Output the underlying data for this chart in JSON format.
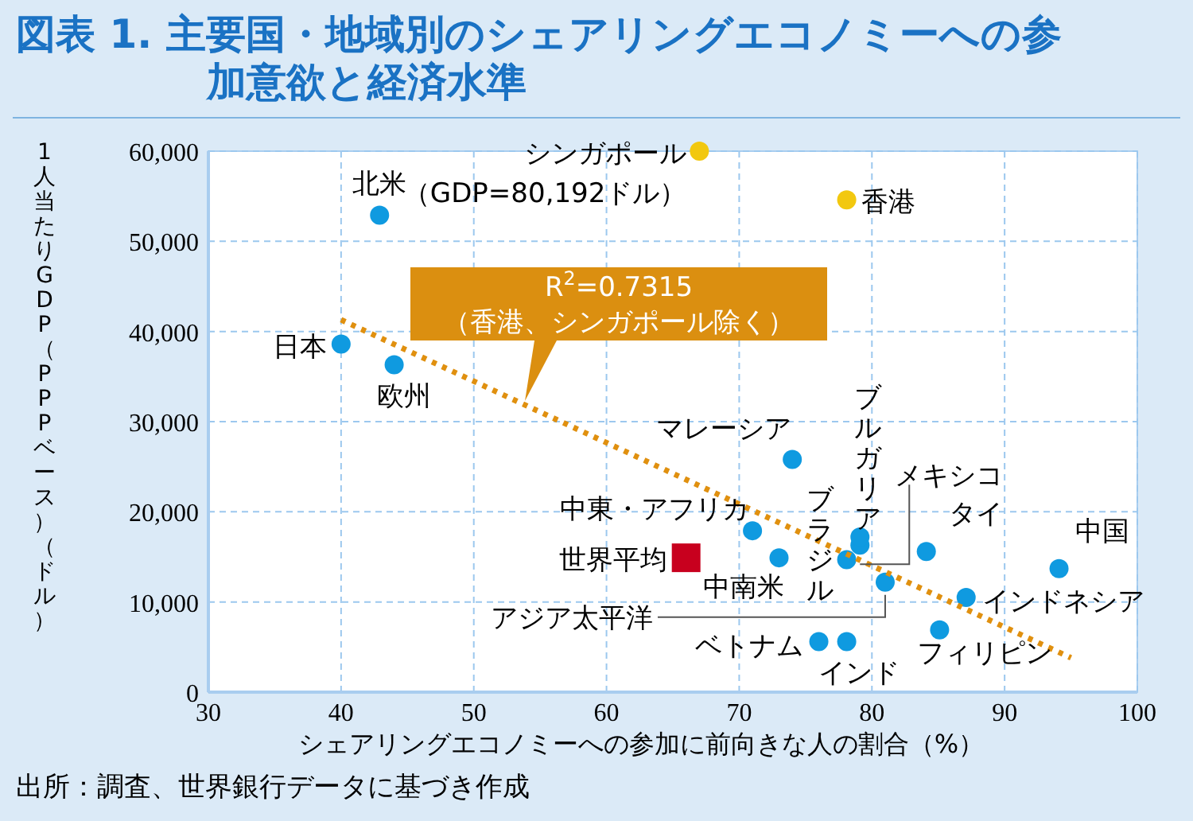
{
  "chart_data": {
    "type": "scatter",
    "title": "図表 1. 主要国・地域別のシェアリングエコノミーへの参加意欲と経済水準",
    "xlabel": "シェアリングエコノミーへの参加に前向きな人の割合（%）",
    "ylabel": "1人当たりGDP（PPPベース）（ドル）",
    "xlim": [
      30,
      100
    ],
    "xticks": [
      30,
      40,
      50,
      60,
      70,
      80,
      90,
      100
    ],
    "ylim": [
      0,
      60000
    ],
    "yticks": [
      0,
      {
        "value": 10000,
        "label": "10,000"
      },
      {
        "value": 20000,
        "label": "20,000"
      },
      {
        "value": 30000,
        "label": "30,000"
      },
      {
        "value": 40000,
        "label": "40,000"
      },
      {
        "value": 50000,
        "label": "50,000"
      },
      {
        "value": 60000,
        "label": "60,000"
      }
    ],
    "grid": true,
    "marker": "circle",
    "series": [
      {
        "color": "#0f9ae0",
        "x": [
          42.9,
          40,
          44,
          74,
          79.1,
          79.1,
          71,
          73,
          78.1,
          84.1,
          94.1,
          81,
          87.1,
          85.1,
          76,
          78.1
        ],
        "values": [
          52900,
          38600,
          36300,
          25800,
          16300,
          17200,
          17900,
          14900,
          14700,
          15600,
          13700,
          12200,
          10500,
          6900,
          5600,
          5600
        ]
      },
      {
        "color": "#f2c80f",
        "x": [
          67,
          78.1
        ],
        "values": [
          60000,
          54600
        ]
      },
      {
        "color": "#c8001e",
        "marker": "square",
        "x": [
          66
        ],
        "values": [
          14900
        ]
      },
      {
        "type": "line",
        "color": "#e0900f",
        "line_style": "dotted",
        "marker": "none",
        "x": [
          40,
          95
        ],
        "values": [
          41300,
          3800
        ]
      }
    ],
    "annotations": [
      {
        "text": "北米",
        "x": 42.9,
        "y": 52900
      },
      {
        "text": "日本",
        "x": 40,
        "y": 38600
      },
      {
        "text": "欧州",
        "x": 44,
        "y": 36300
      },
      {
        "text": "シンガポール",
        "x": 67,
        "y": 60000
      },
      {
        "text": "（GDP=80,192ドル）",
        "x": 67,
        "y": 60000
      },
      {
        "text": "香港",
        "x": 78.1,
        "y": 54600
      },
      {
        "text": "マレーシア",
        "x": 74,
        "y": 25800
      },
      {
        "text": "ブルガリア",
        "x": 79.1,
        "y": 17200
      },
      {
        "text": "中東・アフリカ",
        "x": 71,
        "y": 17900
      },
      {
        "text": "世界平均",
        "x": 66,
        "y": 14900
      },
      {
        "text": "中南米",
        "x": 73,
        "y": 14900
      },
      {
        "text": "ブラジル",
        "x": 78.1,
        "y": 14700
      },
      {
        "text": "タイ",
        "x": 84.1,
        "y": 15600
      },
      {
        "text": "中国",
        "x": 94.1,
        "y": 13700
      },
      {
        "text": "アジア太平洋",
        "x": 81,
        "y": 12200
      },
      {
        "text": "インドネシア",
        "x": 87.1,
        "y": 10500
      },
      {
        "text": "フィリピン",
        "x": 85.1,
        "y": 6900
      },
      {
        "text": "ベトナム",
        "x": 76,
        "y": 5600
      },
      {
        "text": "インド",
        "x": 78.1,
        "y": 5600
      },
      {
        "text": "メキシコ",
        "x": 79.1,
        "y": 16300
      },
      "R$^{2}$=0.7315\n（香港、シンガポール除く）",
      "出所：調査、世界銀行データに基づき作成"
    ]
  }
}
